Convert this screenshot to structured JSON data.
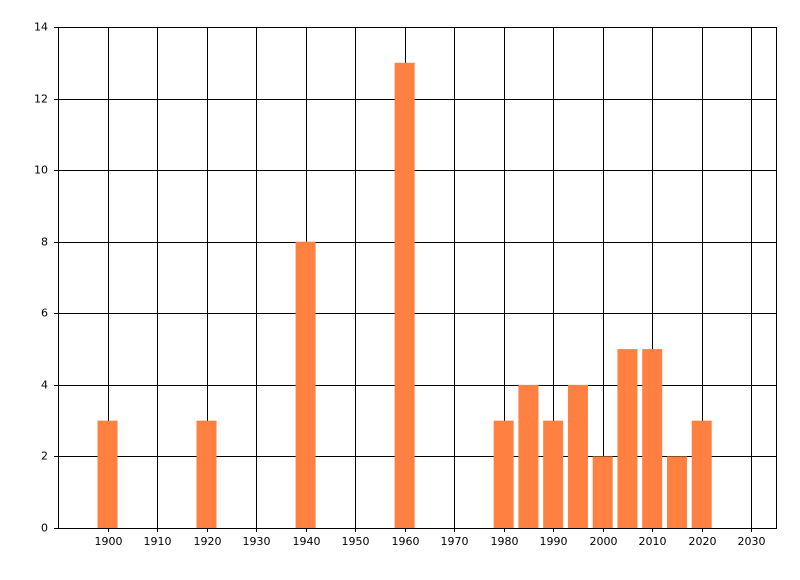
{
  "chart_data": {
    "type": "bar",
    "x": [
      1900,
      1920,
      1940,
      1960,
      1980,
      1985,
      1990,
      1995,
      2000,
      2005,
      2010,
      2015,
      2020
    ],
    "values": [
      3,
      3,
      8,
      13,
      3,
      4,
      3,
      4,
      2,
      5,
      5,
      2,
      3
    ],
    "color": "#ff8040",
    "xlim": [
      1890,
      2035
    ],
    "xticks": [
      1900,
      1910,
      1920,
      1930,
      1940,
      1950,
      1960,
      1970,
      1980,
      1990,
      2000,
      2010,
      2020,
      2030
    ],
    "ylim": [
      0,
      14
    ],
    "yticks": [
      0,
      2,
      4,
      6,
      8,
      10,
      12,
      14
    ],
    "grid": true
  }
}
